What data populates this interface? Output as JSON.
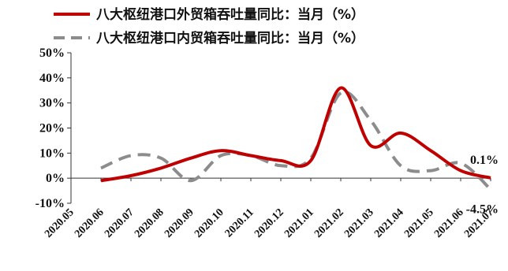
{
  "chart_data": {
    "type": "line",
    "title": "",
    "xlabel": "",
    "ylabel": "",
    "categories": [
      "2020.05",
      "2020.06",
      "2020.07",
      "2020.08",
      "2020.09",
      "2020.10",
      "2020.11",
      "2020.12",
      "2021.01",
      "2021.02",
      "2021.03",
      "2021.04",
      "2021.05",
      "2021.06",
      "2021.07"
    ],
    "ylim": [
      -10,
      50
    ],
    "yticks": [
      "-10%",
      "0%",
      "10%",
      "20%",
      "30%",
      "40%",
      "50%"
    ],
    "ytick_values": [
      -10,
      0,
      10,
      20,
      30,
      40,
      50
    ],
    "grid": false,
    "legend_position": "top",
    "series": [
      {
        "name": "八大枢纽港口外贸箱吞吐量同比：当月（%）",
        "style": "solid",
        "color": "#c00000",
        "values": [
          null,
          -1,
          1,
          4,
          8,
          11,
          9,
          7,
          7,
          36,
          13,
          18,
          11,
          3,
          0.1
        ]
      },
      {
        "name": "八大枢纽港口内贸箱吞吐量同比：当月（%）",
        "style": "dashed",
        "color": "#8c8c8c",
        "values": [
          null,
          4,
          9,
          8,
          -1,
          9,
          9,
          5,
          8,
          34,
          23,
          5,
          3,
          6,
          -4.5
        ]
      }
    ],
    "annotations": [
      {
        "text": "0.1%",
        "series": 0,
        "index": 14
      },
      {
        "text": "-4.5%",
        "series": 1,
        "index": 14
      }
    ]
  }
}
